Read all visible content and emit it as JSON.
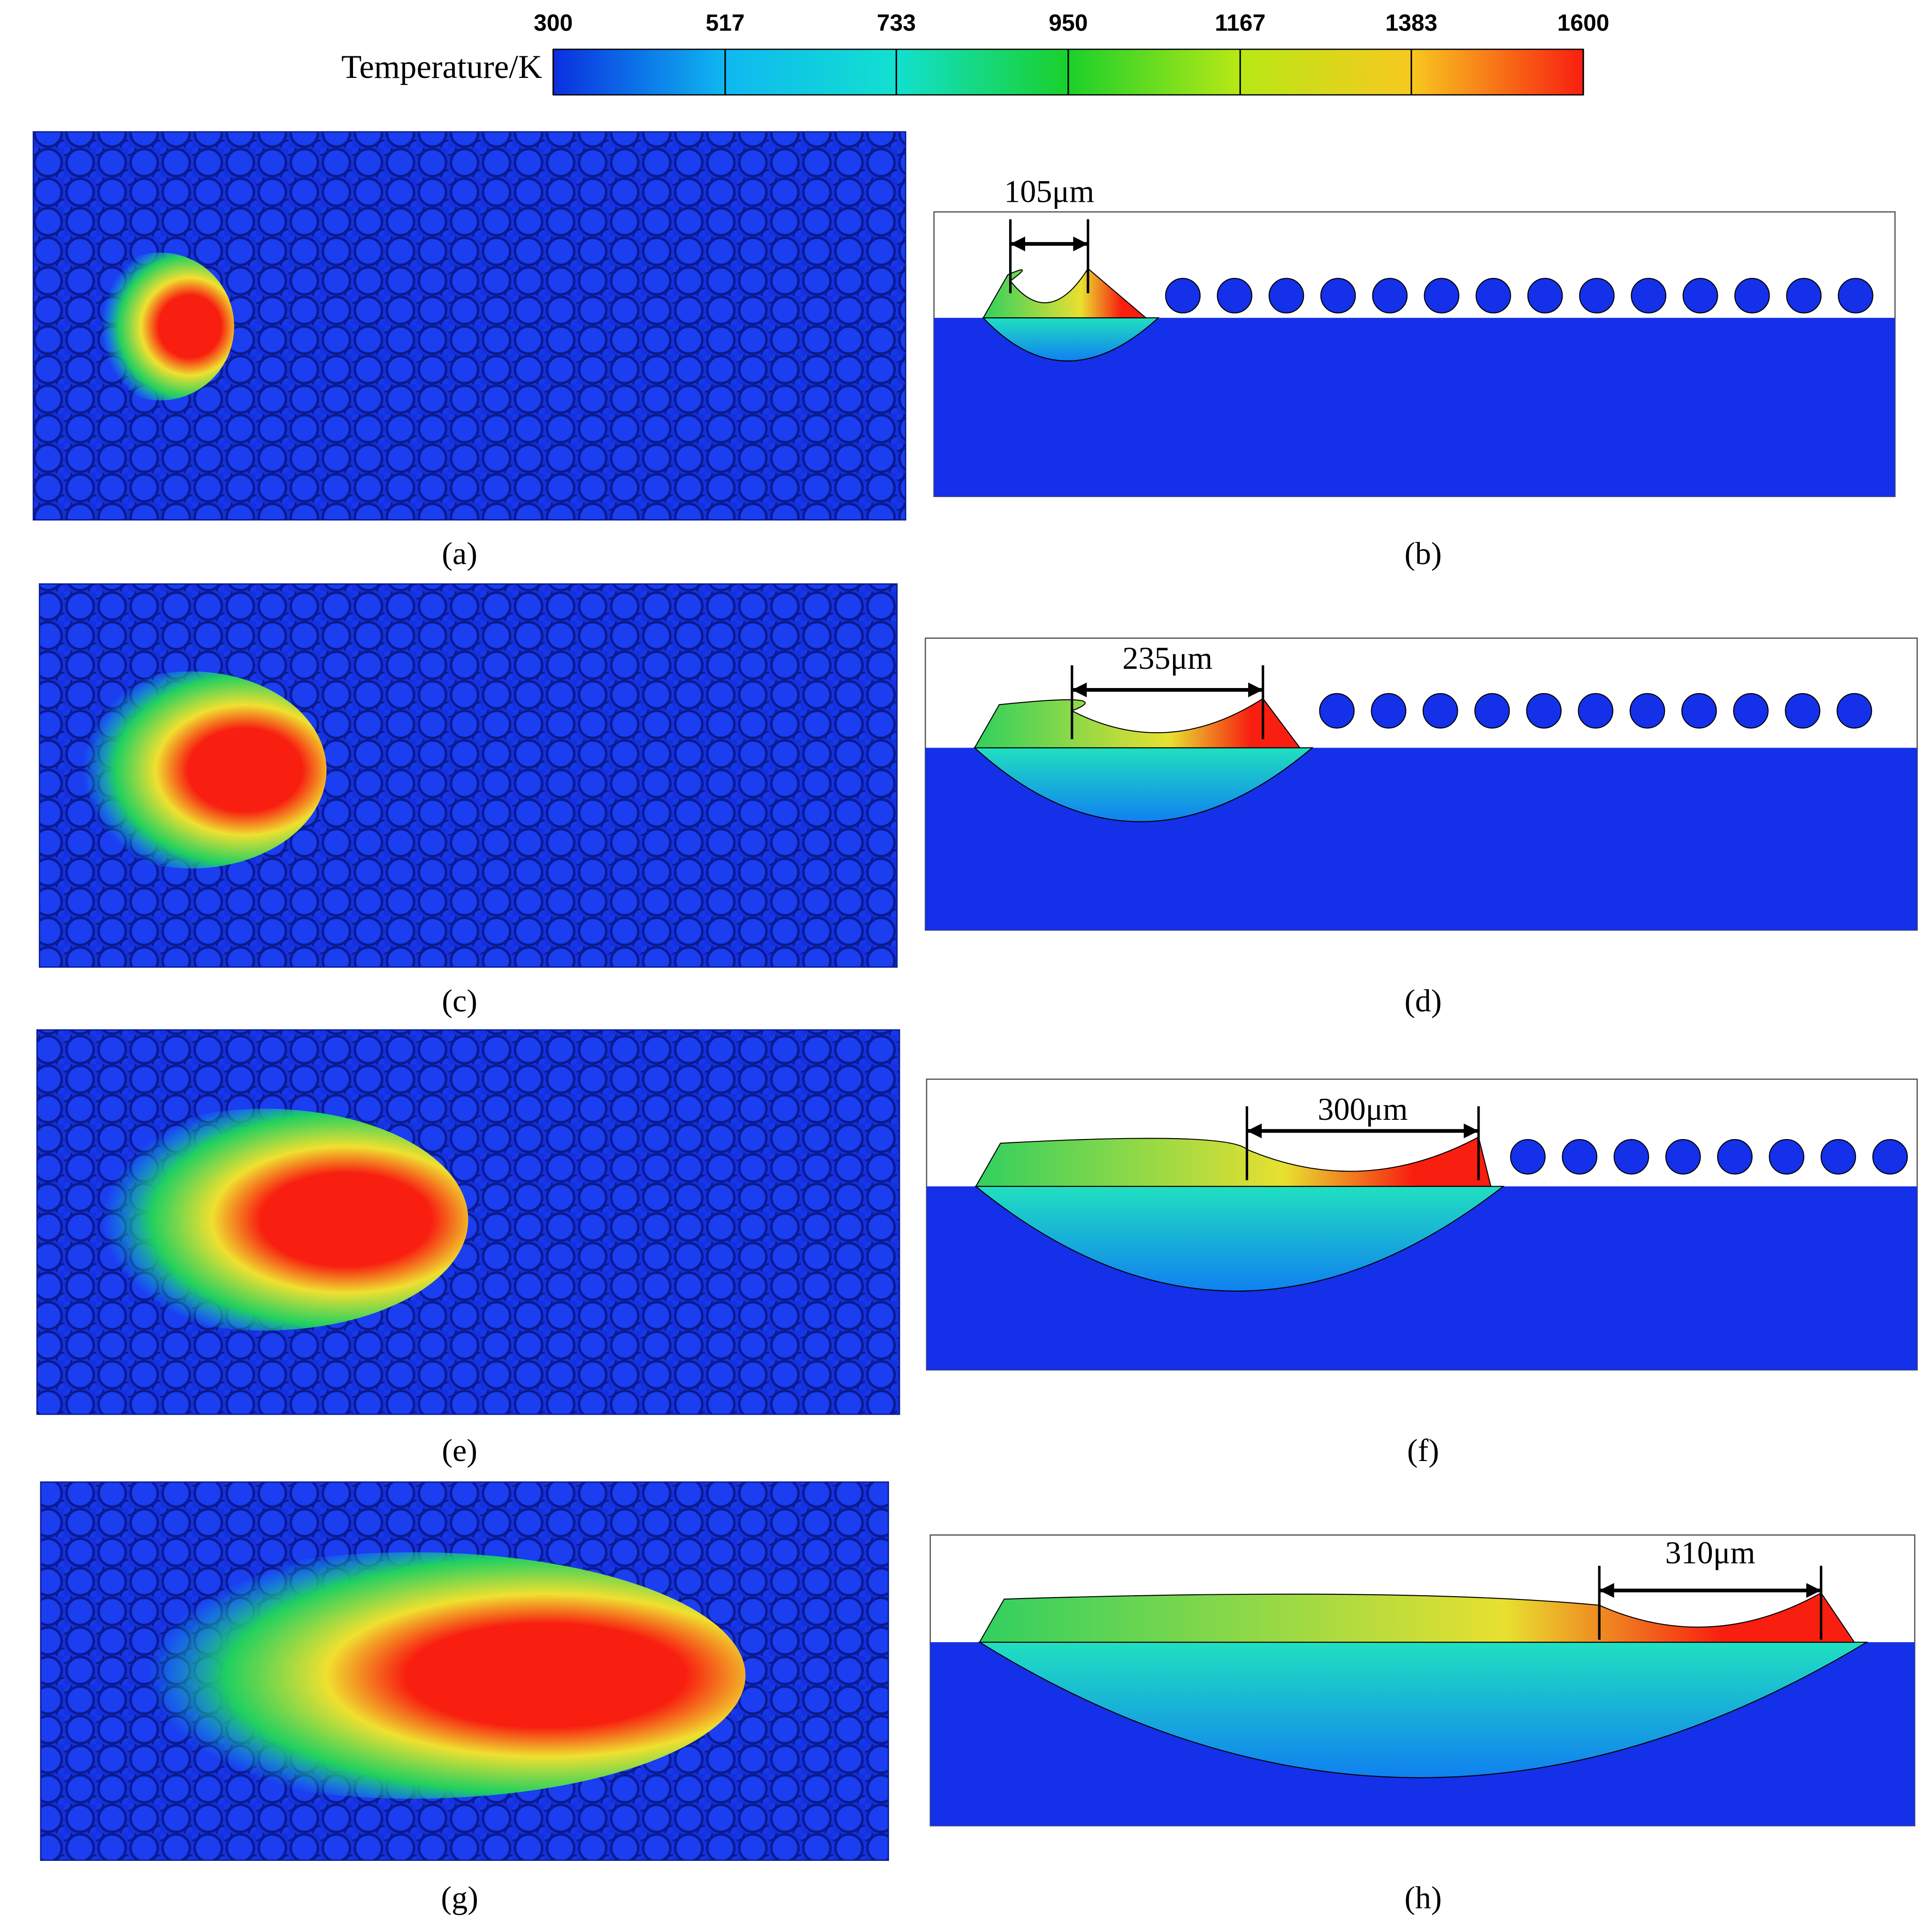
{
  "colorbar": {
    "title": "Temperature/K",
    "lim": [
      300,
      1600
    ],
    "ticks": [
      300,
      517,
      733,
      950,
      1167,
      1383,
      1600
    ],
    "colors": [
      "#0a2fe0",
      "#0fb8f0",
      "#12e0d0",
      "#1ad02a",
      "#b8e815",
      "#f8c820",
      "#f81e10"
    ]
  },
  "panels": [
    {
      "label": "(a)"
    },
    {
      "label": "(b)",
      "measure": "105μm"
    },
    {
      "label": "(c)"
    },
    {
      "label": "(d)",
      "measure": "235μm"
    },
    {
      "label": "(e)"
    },
    {
      "label": "(f)",
      "measure": "300μm"
    },
    {
      "label": "(g)"
    },
    {
      "label": "(h)",
      "measure": "310μm"
    }
  ]
}
